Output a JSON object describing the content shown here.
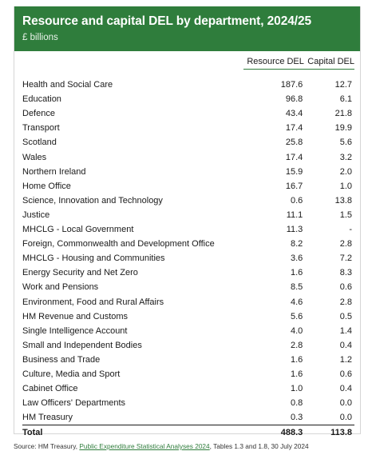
{
  "header": {
    "title": "Resource and capital DEL by department, 2024/25",
    "subtitle": "£ billions"
  },
  "columns": {
    "resource": "Resource DEL",
    "capital": "Capital DEL"
  },
  "rows": [
    {
      "dept": "Health and Social Care",
      "resource": "187.6",
      "capital": "12.7"
    },
    {
      "dept": "Education",
      "resource": "96.8",
      "capital": "6.1"
    },
    {
      "dept": "Defence",
      "resource": "43.4",
      "capital": "21.8"
    },
    {
      "dept": "Transport",
      "resource": "17.4",
      "capital": "19.9"
    },
    {
      "dept": "Scotland",
      "resource": "25.8",
      "capital": "5.6"
    },
    {
      "dept": "Wales",
      "resource": "17.4",
      "capital": "3.2"
    },
    {
      "dept": "Northern Ireland",
      "resource": "15.9",
      "capital": "2.0"
    },
    {
      "dept": "Home Office",
      "resource": "16.7",
      "capital": "1.0"
    },
    {
      "dept": "Science, Innovation and Technology",
      "resource": "0.6",
      "capital": "13.8"
    },
    {
      "dept": "Justice",
      "resource": "11.1",
      "capital": "1.5"
    },
    {
      "dept": "MHCLG - Local Government",
      "resource": "11.3",
      "capital": "-"
    },
    {
      "dept": "Foreign, Commonwealth and Development Office",
      "resource": "8.2",
      "capital": "2.8"
    },
    {
      "dept": "MHCLG - Housing and Communities",
      "resource": "3.6",
      "capital": "7.2"
    },
    {
      "dept": "Energy Security and Net Zero",
      "resource": "1.6",
      "capital": "8.3"
    },
    {
      "dept": "Work and Pensions",
      "resource": "8.5",
      "capital": "0.6"
    },
    {
      "dept": "Environment, Food and Rural Affairs",
      "resource": "4.6",
      "capital": "2.8"
    },
    {
      "dept": "HM Revenue and Customs",
      "resource": "5.6",
      "capital": "0.5"
    },
    {
      "dept": "Single Intelligence Account",
      "resource": "4.0",
      "capital": "1.4"
    },
    {
      "dept": "Small and Independent Bodies",
      "resource": "2.8",
      "capital": "0.4"
    },
    {
      "dept": "Business and Trade",
      "resource": "1.6",
      "capital": "1.2"
    },
    {
      "dept": "Culture, Media and Sport",
      "resource": "1.6",
      "capital": "0.6"
    },
    {
      "dept": "Cabinet Office",
      "resource": "1.0",
      "capital": "0.4"
    },
    {
      "dept": "Law Officers' Departments",
      "resource": "0.8",
      "capital": "0.0"
    },
    {
      "dept": "HM Treasury",
      "resource": "0.3",
      "capital": "0.0"
    }
  ],
  "total": {
    "label": "Total",
    "resource": "488.3",
    "capital": "113.8"
  },
  "footer": {
    "prefix": "Source: HM Treasury, ",
    "link": "Public Expenditure Statistical Analyses 2024",
    "suffix": ", Tables 1.3 and 1.8, 30 July 2024"
  },
  "colors": {
    "accent": "#2f7d3c"
  }
}
